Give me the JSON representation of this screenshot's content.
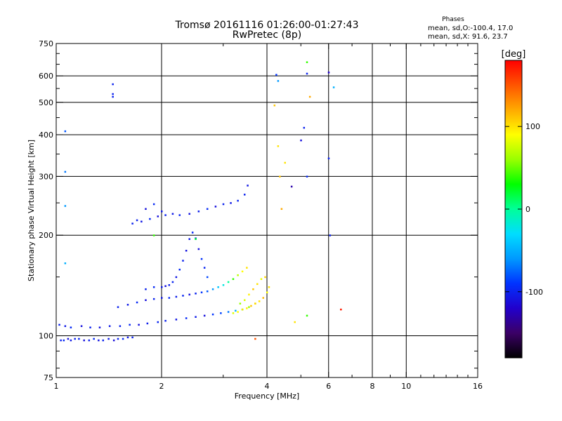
{
  "chart_data": {
    "type": "scatter",
    "title": "Tromsø 20161116 01:26:00-01:27:43",
    "subtitle": "RwPretec (8p)",
    "xlabel": "Frequency [MHz]",
    "ylabel": "Stationary phase Virtual Height [km]",
    "x_scale": "log",
    "y_scale": "log",
    "xlim": [
      1,
      16
    ],
    "ylim": [
      75,
      750
    ],
    "x_ticks": [
      1,
      2,
      4,
      6,
      8,
      10,
      16
    ],
    "y_ticks": [
      75,
      100,
      200,
      300,
      400,
      500,
      600,
      750
    ],
    "grid": true,
    "stats": {
      "heading": "Phases",
      "o_line": "mean, sd,O:-100.4, 17.0",
      "x_line": "mean, sd,X:  91.6, 23.7"
    },
    "colorbar": {
      "title": "[deg]",
      "ticks": [
        100,
        0,
        -100
      ],
      "range": [
        -180,
        180
      ],
      "colors": [
        "#000000",
        "#3b0066",
        "#2200cc",
        "#0033ff",
        "#0099ff",
        "#00ddff",
        "#00ff99",
        "#00ff00",
        "#99ff00",
        "#ffff00",
        "#ffaa00",
        "#ff5500",
        "#ff0000"
      ]
    },
    "series": [
      {
        "x": [
          1.03,
          1.05,
          1.08,
          1.1,
          1.13,
          1.16,
          1.2,
          1.24,
          1.28,
          1.32,
          1.36,
          1.41,
          1.46,
          1.5,
          1.55,
          1.6,
          1.65
        ],
        "y": [
          97,
          97,
          98,
          97,
          98,
          98,
          97,
          97,
          98,
          97,
          97,
          98,
          97,
          98,
          98,
          99,
          99
        ],
        "phase": [
          -100,
          -95,
          -110,
          -105,
          -100,
          -98,
          -110,
          -102,
          -95,
          -108,
          -100,
          -104,
          -112,
          -100,
          -96,
          -104,
          -100
        ]
      },
      {
        "x": [
          1.02,
          1.06,
          1.1,
          1.18,
          1.25,
          1.33,
          1.42,
          1.52,
          1.62,
          1.72,
          1.82,
          1.95,
          2.05,
          2.2,
          2.35,
          2.5,
          2.65,
          2.8,
          2.95,
          3.1,
          3.25,
          3.4,
          3.55,
          3.7
        ],
        "y": [
          108,
          107,
          106,
          107,
          106,
          106,
          107,
          107,
          108,
          108,
          109,
          110,
          111,
          112,
          113,
          114,
          115,
          116,
          117,
          118,
          119,
          120,
          122,
          125
        ],
        "phase": [
          -100,
          -105,
          -95,
          -110,
          -100,
          -108,
          -104,
          -100,
          -96,
          -110,
          -102,
          -98,
          -100,
          -106,
          -95,
          -103,
          -110,
          -90,
          -85,
          -70,
          -50,
          20,
          60,
          80
        ]
      },
      {
        "x": [
          1.5,
          1.6,
          1.7,
          1.8,
          1.9,
          2.0,
          2.1,
          2.2,
          2.3,
          2.4,
          2.5,
          2.6,
          2.7,
          2.8,
          2.9,
          3.0,
          3.1,
          3.2,
          3.3,
          3.4,
          3.5
        ],
        "y": [
          122,
          124,
          126,
          128,
          129,
          130,
          130,
          131,
          132,
          133,
          134,
          135,
          136,
          138,
          140,
          142,
          145,
          148,
          152,
          156,
          160
        ],
        "phase": [
          -100,
          -104,
          -96,
          -110,
          -100,
          -106,
          -95,
          -102,
          -98,
          -108,
          -100,
          -90,
          -80,
          -60,
          -40,
          -20,
          0,
          40,
          70,
          90,
          100
        ]
      },
      {
        "x": [
          1.8,
          1.9,
          2.0,
          2.05,
          2.1,
          2.15,
          2.2,
          2.25,
          2.3,
          2.35,
          2.4,
          2.45,
          2.5,
          2.55,
          2.6,
          2.65,
          2.7
        ],
        "y": [
          138,
          140,
          140,
          141,
          142,
          145,
          150,
          158,
          168,
          180,
          195,
          204,
          196,
          182,
          170,
          160,
          150
        ],
        "phase": [
          -100,
          -96,
          -104,
          -110,
          -102,
          -98,
          -106,
          -95,
          -100,
          -108,
          -104,
          -96,
          -100,
          -110,
          -92,
          -98,
          -85
        ]
      },
      {
        "x": [
          3.2,
          3.3,
          3.4,
          3.5,
          3.6,
          3.7,
          3.8,
          3.9,
          4.0,
          4.05,
          3.35,
          3.45,
          3.55,
          3.65,
          3.75,
          3.85,
          3.95
        ],
        "y": [
          117,
          118,
          120,
          121,
          123,
          125,
          127,
          130,
          135,
          140,
          125,
          128,
          133,
          138,
          143,
          148,
          150
        ],
        "phase": [
          80,
          90,
          100,
          95,
          110,
          105,
          100,
          115,
          90,
          100,
          60,
          80,
          95,
          110,
          100,
          85,
          105
        ]
      },
      {
        "x": [
          1.65,
          1.75,
          1.85,
          1.95,
          2.05,
          2.15,
          2.25,
          2.4,
          2.55,
          2.7,
          2.85,
          3.0,
          3.15,
          3.3,
          3.45,
          3.52,
          1.7,
          1.8,
          1.9,
          2.0
        ],
        "y": [
          217,
          220,
          224,
          228,
          230,
          232,
          230,
          232,
          236,
          240,
          244,
          248,
          250,
          254,
          265,
          282,
          222,
          240,
          248,
          236
        ],
        "phase": [
          -100,
          -106,
          -96,
          -110,
          -100,
          -104,
          -98,
          -108,
          -102,
          -95,
          -110,
          -100,
          -105,
          -98,
          -100,
          -106,
          -100,
          -110,
          -96,
          -104
        ]
      },
      {
        "x": [
          1.45,
          1.45,
          1.45,
          1.06,
          1.06,
          1.06,
          1.06,
          4.25,
          4.3,
          4.35,
          4.5,
          4.7,
          5.0,
          5.1,
          5.2,
          5.2,
          5.2,
          5.3,
          6.0,
          6.0,
          6.05,
          6.2
        ],
        "y": [
          567,
          520,
          530,
          410,
          310,
          245,
          165,
          605,
          580,
          300,
          330,
          280,
          385,
          420,
          610,
          660,
          300,
          520,
          340,
          615,
          200,
          555
        ],
        "phase": [
          -100,
          -100,
          -100,
          -80,
          -70,
          -60,
          -50,
          -90,
          -60,
          110,
          100,
          -130,
          -110,
          -100,
          -100,
          40,
          -95,
          120,
          -100,
          -120,
          -100,
          -50
        ]
      },
      {
        "x": [
          4.2,
          4.3,
          4.4,
          4.8,
          5.2,
          6.5,
          3.7,
          2.5,
          1.9
        ],
        "y": [
          490,
          370,
          240,
          110,
          115,
          120,
          98,
          195,
          200
        ],
        "phase": [
          110,
          100,
          120,
          100,
          40,
          170,
          150,
          20,
          40
        ]
      }
    ]
  }
}
